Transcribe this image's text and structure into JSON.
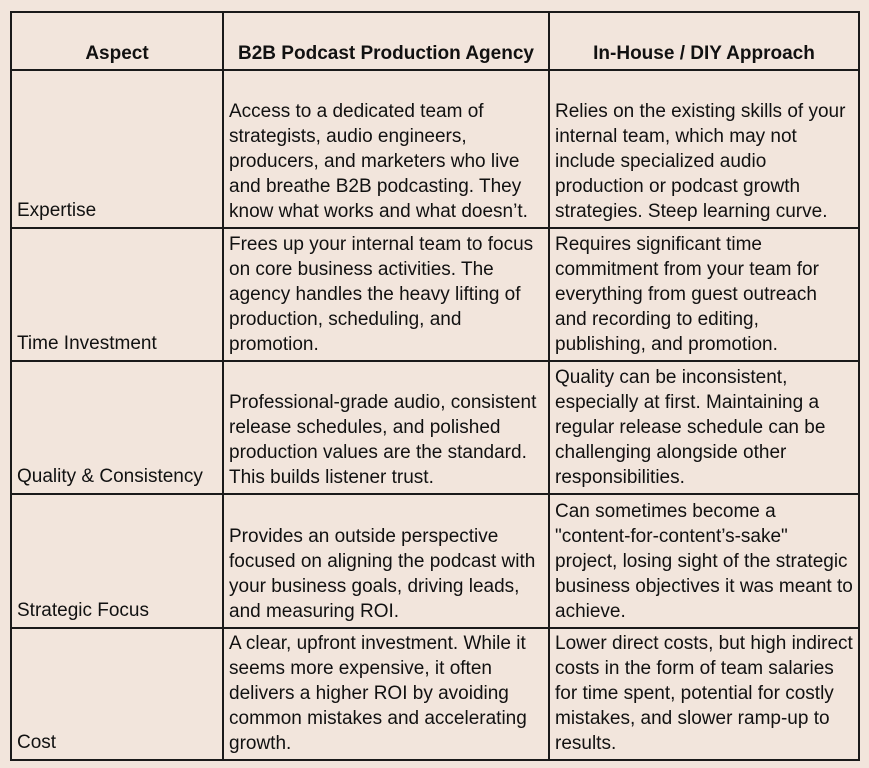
{
  "table": {
    "headers": [
      "Aspect",
      "B2B Podcast Production Agency",
      "In-House / DIY Approach"
    ],
    "rows": [
      {
        "aspect": "Expertise",
        "agency": "Access to a dedicated team of strategists, audio engineers, producers, and marketers who live and breathe B2B podcasting. They know what works and what doesn’t.",
        "inhouse": "Relies on the existing skills of your internal team, which may not include specialized audio production or podcast growth strategies. Steep learning curve."
      },
      {
        "aspect": "Time Investment",
        "agency": "Frees up your internal team to focus on core business activities. The agency handles the heavy lifting of production, scheduling, and promotion.",
        "inhouse": "Requires significant time commitment from your team for everything from guest outreach and recording to editing, publishing, and promotion."
      },
      {
        "aspect": "Quality & Consistency",
        "agency": "Professional-grade audio, consistent release schedules, and polished production values are the standard. This builds listener trust.",
        "inhouse": "Quality can be inconsistent, especially at first. Maintaining a regular release schedule can be challenging alongside other responsibilities."
      },
      {
        "aspect": "Strategic Focus",
        "agency": "Provides an outside perspective focused on aligning the podcast with your business goals, driving leads, and measuring ROI.",
        "inhouse": "Can sometimes become a \"content-for-content’s-sake\" project, losing sight of the strategic business objectives it was meant to achieve."
      },
      {
        "aspect": "Cost",
        "agency": "A clear, upfront investment. While it seems more expensive, it often delivers a higher ROI by avoiding common mistakes and accelerating growth.",
        "inhouse": "Lower direct costs, but high indirect costs in the form of team salaries for time spent, potential for costly mistakes, and slower ramp-up to results."
      }
    ]
  }
}
